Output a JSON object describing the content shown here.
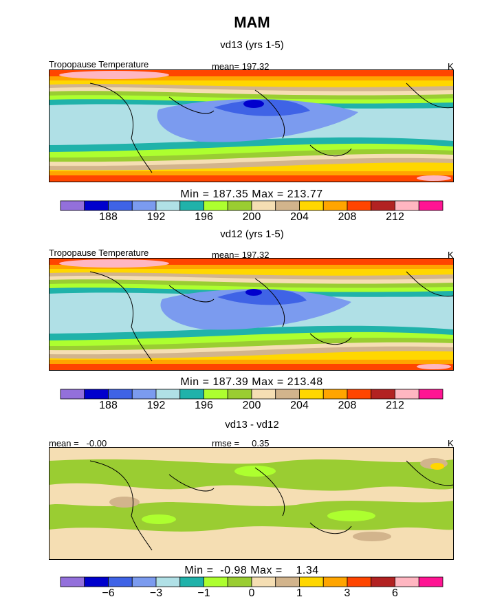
{
  "title": "MAM",
  "chart_data": [
    {
      "type": "heatmap",
      "panel_title": "vd13 (yrs 1-5)",
      "variable": "Tropopause Temperature",
      "mean_label": "mean= 197.32",
      "units": "K",
      "stats_label": "Min = 187.35 Max = 213.77",
      "min": 187.35,
      "max": 213.77,
      "mean": 197.32,
      "levels": [
        186,
        188,
        190,
        192,
        194,
        196,
        198,
        200,
        202,
        204,
        206,
        208,
        210,
        212,
        214,
        216
      ],
      "colorbar_ticks": [
        "188",
        "192",
        "196",
        "200",
        "204",
        "208",
        "212"
      ],
      "colors": [
        "#9370db",
        "#0000cd",
        "#3f63e6",
        "#7b9bef",
        "#b0e0e6",
        "#20b2aa",
        "#adff2f",
        "#9acd32",
        "#f5deb3",
        "#d2b48c",
        "#ffd700",
        "#ffa500",
        "#ff4500",
        "#b22222",
        "#ffb6c1",
        "#ff1493"
      ]
    },
    {
      "type": "heatmap",
      "panel_title": "vd12 (yrs 1-5)",
      "variable": "Tropopause Temperature",
      "mean_label": "mean= 197.32",
      "units": "K",
      "stats_label": "Min = 187.39 Max = 213.48",
      "min": 187.39,
      "max": 213.48,
      "mean": 197.32,
      "levels": [
        186,
        188,
        190,
        192,
        194,
        196,
        198,
        200,
        202,
        204,
        206,
        208,
        210,
        212,
        214,
        216
      ],
      "colorbar_ticks": [
        "188",
        "192",
        "196",
        "200",
        "204",
        "208",
        "212"
      ],
      "colors": [
        "#9370db",
        "#0000cd",
        "#3f63e6",
        "#7b9bef",
        "#b0e0e6",
        "#20b2aa",
        "#adff2f",
        "#9acd32",
        "#f5deb3",
        "#d2b48c",
        "#ffd700",
        "#ffa500",
        "#ff4500",
        "#b22222",
        "#ffb6c1",
        "#ff1493"
      ]
    },
    {
      "type": "heatmap",
      "panel_title": "vd13 - vd12",
      "mean_label": "mean =   -0.00",
      "rmse_label": "rmse =     0.35",
      "units": "K",
      "stats_label": "Min =  -0.98 Max =    1.34",
      "min": -0.98,
      "max": 1.34,
      "mean": -0.0,
      "rmse": 0.35,
      "colorbar_ticks": [
        "-6",
        "-3",
        "-1",
        "0",
        "1",
        "3",
        "6"
      ],
      "colors": [
        "#9370db",
        "#0000cd",
        "#3f63e6",
        "#7b9bef",
        "#b0e0e6",
        "#20b2aa",
        "#adff2f",
        "#9acd32",
        "#f5deb3",
        "#d2b48c",
        "#ffd700",
        "#ffa500",
        "#ff4500",
        "#b22222",
        "#ffb6c1",
        "#ff1493"
      ]
    }
  ]
}
